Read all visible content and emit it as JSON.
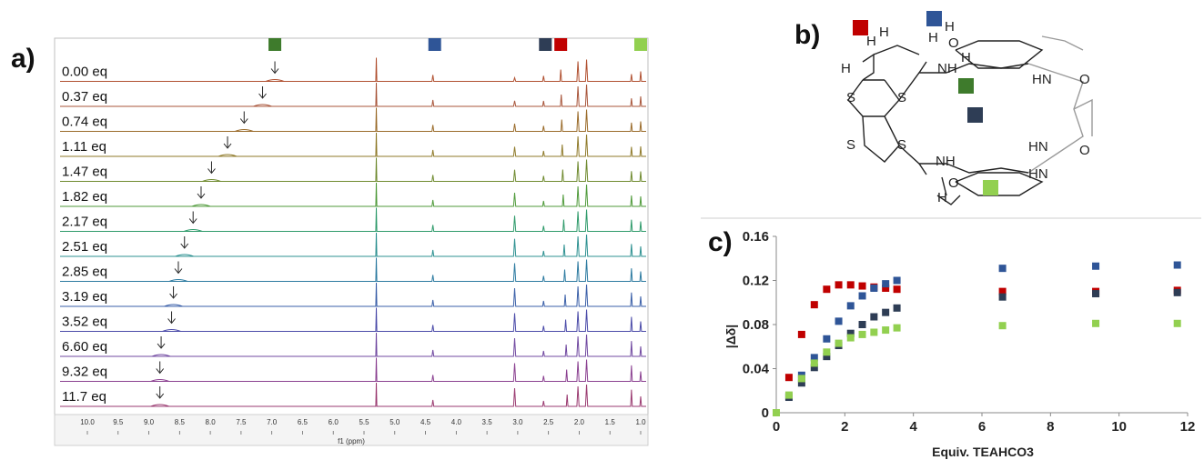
{
  "labels": {
    "a": "a)",
    "b": "b)",
    "c": "c)"
  },
  "nmr": {
    "eq_labels": [
      "0.00 eq",
      "0.37 eq",
      "0.74 eq",
      "1.11 eq",
      "1.47 eq",
      "1.82 eq",
      "2.17 eq",
      "2.51 eq",
      "2.85 eq",
      "3.19 eq",
      "3.52 eq",
      "6.60 eq",
      "9.32 eq",
      "11.7 eq"
    ],
    "xticks": [
      "10.0",
      "9.5",
      "9.0",
      "8.5",
      "8.0",
      "7.5",
      "7.0",
      "6.5",
      "6.0",
      "5.5",
      "5.0",
      "4.5",
      "4.0",
      "3.5",
      "3.0",
      "2.5",
      "2.0",
      "1.5",
      "1.0"
    ],
    "xlabel": "f1 (ppm)",
    "nh_shift_ppm": [
      6.95,
      7.15,
      7.45,
      7.72,
      7.98,
      8.15,
      8.28,
      8.42,
      8.52,
      8.6,
      8.63,
      8.8,
      8.82,
      8.82
    ],
    "markers": [
      {
        "name": "dark-green-marker",
        "ppm": 6.95,
        "color": "#3e7b2c"
      },
      {
        "name": "blue-marker",
        "ppm": 4.35,
        "color": "#2f5597"
      },
      {
        "name": "navy-marker",
        "ppm": 2.55,
        "color": "#2e3d55"
      },
      {
        "name": "red-marker",
        "ppm": 2.3,
        "color": "#c00000"
      },
      {
        "name": "light-green-marker",
        "ppm": 1.0,
        "color": "#92d050"
      }
    ],
    "trace_colors": [
      "#b05030",
      "#a8553a",
      "#9a6b2a",
      "#8f7a2a",
      "#6f8a2f",
      "#4f9a3a",
      "#2e9a6a",
      "#2c9090",
      "#2c7aa0",
      "#3a5fa8",
      "#4a4aa8",
      "#7048a0",
      "#8a4090",
      "#9a3a70"
    ]
  },
  "molecule": {
    "atoms": [
      "H",
      "H",
      "H",
      "H",
      "H",
      "H",
      "H",
      "S",
      "S",
      "S",
      "S",
      "O",
      "O",
      "O",
      "O",
      "NH",
      "NH",
      "HN",
      "HN",
      "HN"
    ]
  },
  "chart_data": {
    "type": "scatter",
    "xlabel": "Equiv. TEAHCO3",
    "ylabel": "|Δδ|",
    "xlim": [
      0,
      12
    ],
    "ylim": [
      0,
      0.16
    ],
    "xticks": [
      0,
      2,
      4,
      6,
      8,
      10,
      12
    ],
    "yticks": [
      "0",
      "0.04",
      "0.08",
      "0.12",
      "0.16"
    ],
    "grid": false,
    "x": [
      0.0,
      0.37,
      0.74,
      1.11,
      1.47,
      1.82,
      2.17,
      2.51,
      2.85,
      3.19,
      3.52,
      6.6,
      9.32,
      11.7
    ],
    "series": [
      {
        "color": "#c00000",
        "values": [
          0.0,
          0.032,
          0.071,
          0.098,
          0.112,
          0.116,
          0.116,
          0.115,
          0.114,
          0.113,
          0.112,
          0.11,
          0.11,
          0.111
        ]
      },
      {
        "color": "#2f5597",
        "values": [
          0.0,
          0.015,
          0.034,
          0.05,
          0.067,
          0.083,
          0.097,
          0.106,
          0.113,
          0.117,
          0.12,
          0.131,
          0.133,
          0.134
        ]
      },
      {
        "color": "#2e3d55",
        "values": [
          0.0,
          0.014,
          0.027,
          0.041,
          0.051,
          0.061,
          0.072,
          0.08,
          0.087,
          0.091,
          0.095,
          0.105,
          0.108,
          0.109
        ]
      },
      {
        "color": "#92d050",
        "values": [
          0.0,
          0.016,
          0.031,
          0.045,
          0.055,
          0.063,
          0.068,
          0.071,
          0.073,
          0.075,
          0.077,
          0.079,
          0.081,
          0.081
        ]
      }
    ]
  }
}
